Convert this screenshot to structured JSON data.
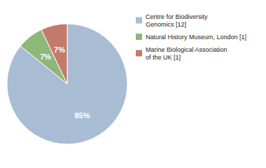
{
  "chart_data": {
    "type": "pie",
    "categories": [
      "Centre for Biodiversity\nGenomics [12]",
      "Natural History Museum, London [1]",
      "Marine Biological Association\nof the UK [1]"
    ],
    "values": [
      85,
      7,
      7
    ],
    "value_labels": [
      "85%",
      "7%",
      "7%"
    ],
    "colors": [
      "#a8bdd4",
      "#8db87a",
      "#c47a6a"
    ],
    "data_labels": true,
    "legend": "right"
  }
}
